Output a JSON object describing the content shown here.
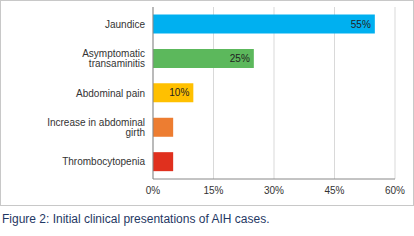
{
  "chart_data": {
    "type": "bar",
    "orientation": "horizontal",
    "title": "Figure 2: Initial clinical presentations of AIH cases.",
    "categories": [
      "Jaundice",
      "Asymptomatic transaminitis",
      "Abdominal pain",
      "Increase in abdominal girth",
      "Thrombocytopenia"
    ],
    "values": [
      55,
      25,
      10,
      5,
      5
    ],
    "value_labels": [
      "55%",
      "25%",
      "10%",
      null,
      null
    ],
    "data_labels": true,
    "colors": [
      "#00b0f0",
      "#5cb85c",
      "#ffc000",
      "#ed7d31",
      "#e0301e"
    ],
    "xlim": [
      0,
      60
    ],
    "xticks": [
      {
        "value": 0,
        "label": "0%"
      },
      {
        "value": 15,
        "label": "15%"
      },
      {
        "value": 30,
        "label": "30%"
      },
      {
        "value": 45,
        "label": "45%"
      },
      {
        "value": 60,
        "label": "60%"
      }
    ],
    "grid": true
  }
}
